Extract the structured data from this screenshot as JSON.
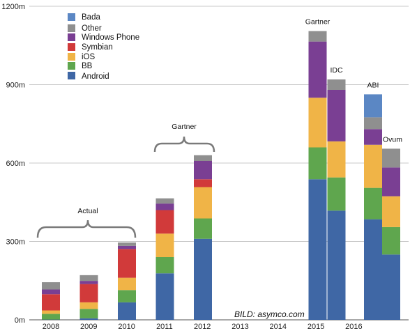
{
  "chart_data": {
    "type": "bar",
    "stacked": true,
    "title": "",
    "xlabel": "",
    "ylabel": "",
    "ylim": [
      0,
      1200
    ],
    "y_tick_labels": [
      "0m",
      "300m",
      "600m",
      "900m",
      "1200m"
    ],
    "grid": "horizontal",
    "legend_placement": "top-left",
    "colors": {
      "Android": "#3f67a5",
      "BB": "#5fa64e",
      "iOS": "#f0b447",
      "Symbian": "#d13a3a",
      "Windows Phone": "#7a3f93",
      "Other": "#8f8f8f",
      "Bada": "#5b87c4"
    },
    "legend": [
      "Bada",
      "Other",
      "Windows Phone",
      "Symbian",
      "iOS",
      "BB",
      "Android"
    ],
    "x_tick_labels": [
      "2008",
      "2009",
      "2010",
      "2011",
      "2012",
      "2013",
      "2014",
      "2015",
      "2016"
    ],
    "bars": [
      {
        "year": "2008",
        "source": "",
        "segments": {
          "Android": 1,
          "BB": 22,
          "iOS": 13,
          "Symbian": 62,
          "Windows Phone": 18,
          "Other": 28,
          "Bada": 0
        }
      },
      {
        "year": "2009",
        "source": "",
        "segments": {
          "Android": 6,
          "BB": 36,
          "iOS": 25,
          "Symbian": 70,
          "Windows Phone": 12,
          "Other": 22,
          "Bada": 0
        }
      },
      {
        "year": "2010",
        "source": "",
        "segments": {
          "Android": 67,
          "BB": 47,
          "iOS": 47,
          "Symbian": 110,
          "Windows Phone": 12,
          "Other": 13,
          "Bada": 0
        }
      },
      {
        "year": "2011",
        "source": "",
        "segments": {
          "Android": 178,
          "BB": 62,
          "iOS": 90,
          "Symbian": 90,
          "Windows Phone": 25,
          "Other": 20,
          "Bada": 0
        }
      },
      {
        "year": "2012",
        "source": "",
        "segments": {
          "Android": 310,
          "BB": 78,
          "iOS": 120,
          "Symbian": 30,
          "Windows Phone": 70,
          "Other": 22,
          "Bada": 0
        }
      },
      {
        "year": "2015",
        "source": "Gartner",
        "segments": {
          "Android": 538,
          "BB": 122,
          "iOS": 190,
          "Symbian": 0,
          "Windows Phone": 215,
          "Other": 40,
          "Bada": 0
        }
      },
      {
        "year": "2015",
        "source": "IDC",
        "segments": {
          "Android": 418,
          "BB": 127,
          "iOS": 138,
          "Symbian": 0,
          "Windows Phone": 197,
          "Other": 40,
          "Bada": 0
        }
      },
      {
        "year": "2016",
        "source": "ABI",
        "segments": {
          "Android": 385,
          "BB": 120,
          "iOS": 165,
          "Symbian": 0,
          "Windows Phone": 60,
          "Other": 45,
          "Bada": 88
        }
      },
      {
        "year": "2016",
        "source": "Ovum",
        "segments": {
          "Android": 250,
          "BB": 105,
          "iOS": 118,
          "Symbian": 0,
          "Windows Phone": 110,
          "Other": 72,
          "Bada": 0
        }
      }
    ],
    "annotations": [
      "Actual",
      "Gartner"
    ],
    "source_credit": "BILD: asymco.com"
  }
}
